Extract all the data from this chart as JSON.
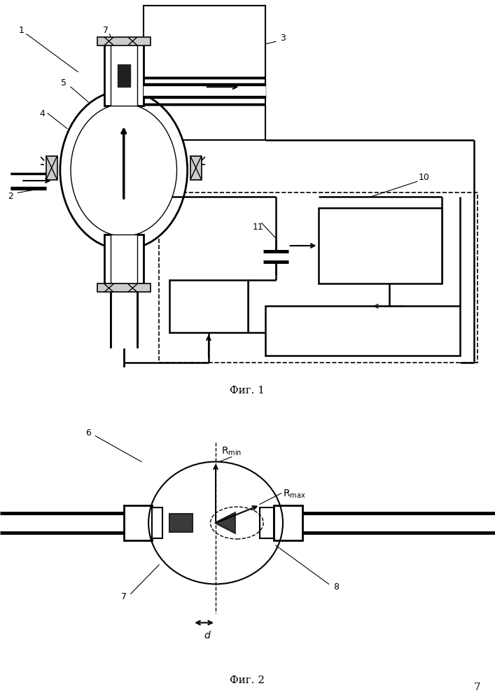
{
  "fig1_caption": "Фиг. 1",
  "fig2_caption": "Фиг. 2",
  "page_number": "7",
  "bg_color": "#ffffff",
  "line_color": "#000000"
}
